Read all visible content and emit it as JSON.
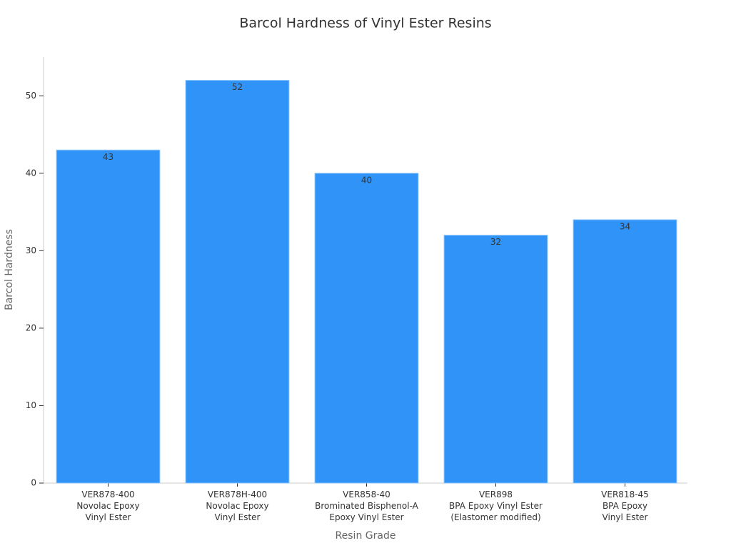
{
  "chart_data": {
    "type": "bar",
    "title": "Barcol Hardness of Vinyl Ester Resins",
    "x_label": "Resin Grade",
    "y_label": "Barcol Hardness",
    "categories": [
      [
        "VER878-400",
        "Novolac Epoxy",
        "Vinyl Ester"
      ],
      [
        "VER878H-400",
        "Novolac Epoxy",
        "Vinyl Ester"
      ],
      [
        "VER858-40",
        "Brominated Bisphenol-A",
        "Epoxy Vinyl Ester"
      ],
      [
        "VER898",
        "BPA Epoxy Vinyl Ester",
        "(Elastomer modified)"
      ],
      [
        "VER818-45",
        "BPA Epoxy",
        "Vinyl Ester"
      ]
    ],
    "values": [
      43,
      52,
      40,
      32,
      34
    ],
    "color": "#2f93f7",
    "ylim": [
      0,
      55
    ],
    "yticks": [
      0,
      10,
      20,
      30,
      40,
      50
    ],
    "grid": false
  }
}
